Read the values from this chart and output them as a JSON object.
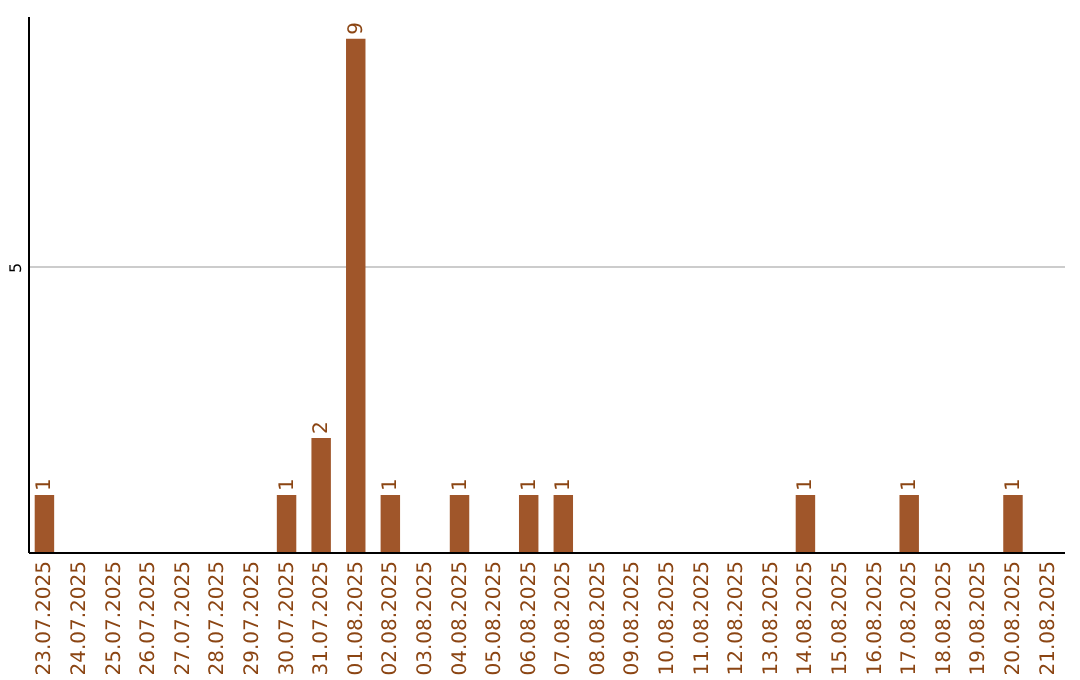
{
  "chart_data": {
    "type": "bar",
    "categories": [
      "23.07.2025",
      "24.07.2025",
      "25.07.2025",
      "26.07.2025",
      "27.07.2025",
      "28.07.2025",
      "29.07.2025",
      "30.07.2025",
      "31.07.2025",
      "01.08.2025",
      "02.08.2025",
      "03.08.2025",
      "04.08.2025",
      "05.08.2025",
      "06.08.2025",
      "07.08.2025",
      "08.08.2025",
      "09.08.2025",
      "10.08.2025",
      "11.08.2025",
      "12.08.2025",
      "13.08.2025",
      "14.08.2025",
      "15.08.2025",
      "16.08.2025",
      "17.08.2025",
      "18.08.2025",
      "19.08.2025",
      "20.08.2025",
      "21.08.2025"
    ],
    "values": [
      1,
      0,
      0,
      0,
      0,
      0,
      0,
      1,
      2,
      9,
      1,
      0,
      1,
      0,
      1,
      1,
      0,
      0,
      0,
      0,
      0,
      0,
      1,
      0,
      0,
      1,
      0,
      0,
      1,
      0
    ],
    "value_labels": [
      "1",
      null,
      null,
      null,
      null,
      null,
      null,
      "1",
      "2",
      "9",
      "1",
      null,
      "1",
      null,
      "1",
      "1",
      null,
      null,
      null,
      null,
      null,
      null,
      "1",
      null,
      null,
      "1",
      null,
      null,
      "1",
      null
    ],
    "color": "#a0562a",
    "ylim": [
      0,
      9.4
    ],
    "yticks": [
      5
    ],
    "grid": "y"
  }
}
